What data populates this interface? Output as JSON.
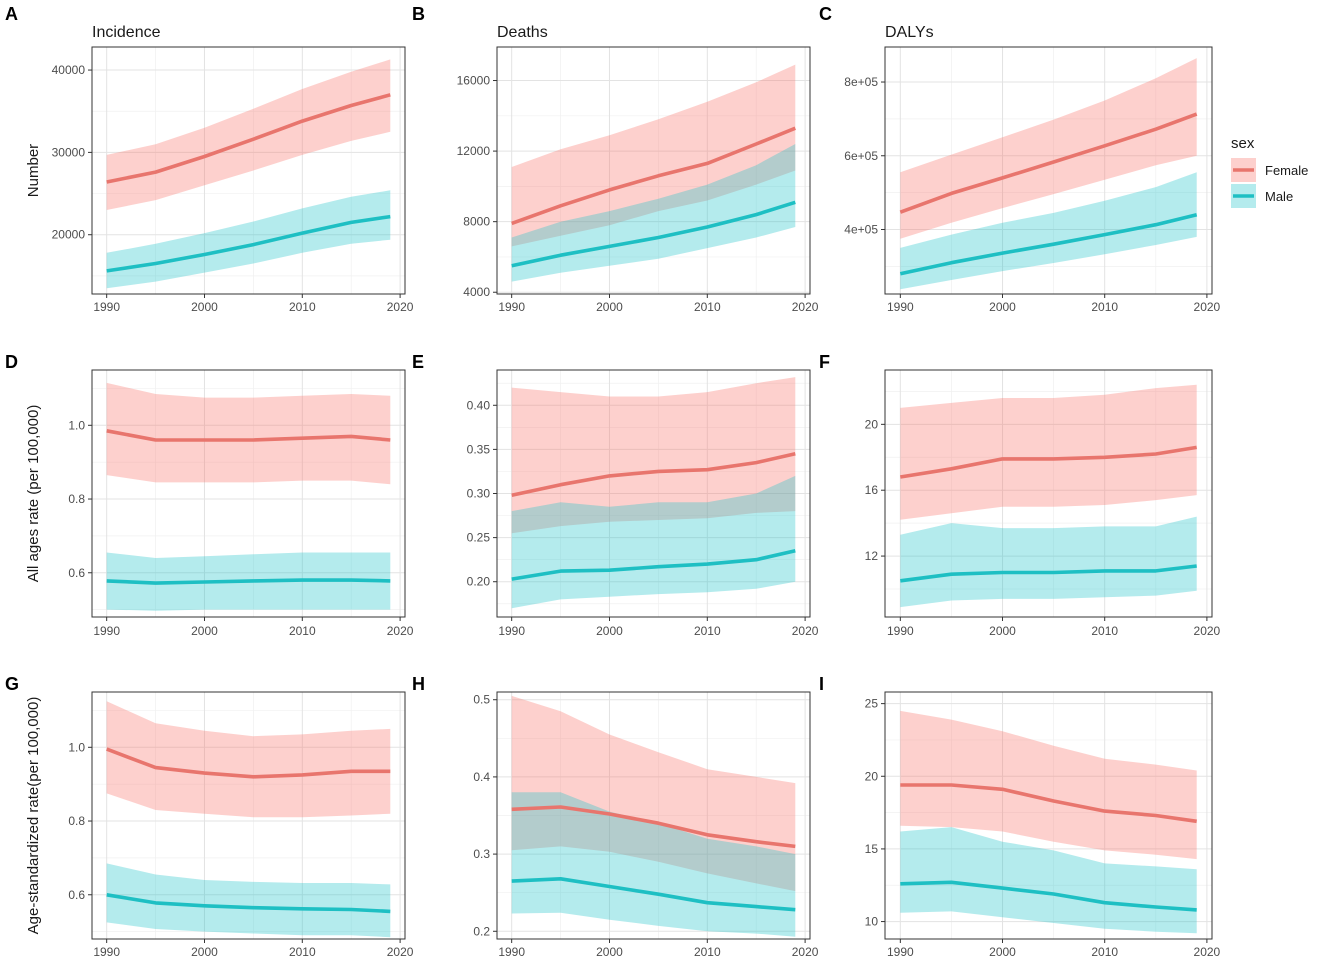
{
  "colors": {
    "Female": "#E8756D",
    "Male": "#1EBFC3",
    "female_band": "#F8766D",
    "male_band": "#22C5CA"
  },
  "legend": {
    "title": "sex",
    "items": [
      {
        "label": "Female",
        "color": "#E8756D"
      },
      {
        "label": "Male",
        "color": "#1EBFC3"
      }
    ]
  },
  "row_labels": [
    "Number",
    "All ages rate (per 100,000)",
    "Age-standardized rate(per 100,000)"
  ],
  "chart_data": [
    {
      "id": "A",
      "type": "line",
      "title": "Incidence",
      "ylabel": "Number",
      "xlim": [
        1988.5,
        2020.5
      ],
      "xticks": [
        1990,
        2000,
        2010,
        2020
      ],
      "xtick_labels": [
        "1990",
        "2000",
        "2010",
        "2020"
      ],
      "ylim": [
        12800,
        42800
      ],
      "yticks": [
        20000,
        30000,
        40000
      ],
      "ytick_labels": [
        "20000",
        "30000",
        "40000"
      ],
      "x": [
        1990,
        1995,
        2000,
        2005,
        2010,
        2015,
        2019
      ],
      "series": [
        {
          "name": "Female",
          "values": [
            26400,
            27600,
            29500,
            31600,
            33800,
            35700,
            37000
          ],
          "lower": [
            23000,
            24200,
            26000,
            27800,
            29700,
            31400,
            32500
          ],
          "upper": [
            29700,
            31000,
            33000,
            35300,
            37700,
            39800,
            41300
          ]
        },
        {
          "name": "Male",
          "values": [
            15600,
            16500,
            17600,
            18800,
            20200,
            21500,
            22200
          ],
          "lower": [
            13500,
            14300,
            15400,
            16500,
            17800,
            18900,
            19400
          ],
          "upper": [
            17800,
            18900,
            20200,
            21600,
            23200,
            24600,
            25400
          ]
        }
      ]
    },
    {
      "id": "B",
      "type": "line",
      "title": "Deaths",
      "ylabel": "",
      "xlim": [
        1988.5,
        2020.5
      ],
      "xticks": [
        1990,
        2000,
        2010,
        2020
      ],
      "xtick_labels": [
        "1990",
        "2000",
        "2010",
        "2020"
      ],
      "ylim": [
        3900,
        17900
      ],
      "yticks": [
        4000,
        8000,
        12000,
        16000
      ],
      "ytick_labels": [
        "4000",
        "8000",
        "12000",
        "16000"
      ],
      "x": [
        1990,
        1995,
        2000,
        2005,
        2010,
        2015,
        2019
      ],
      "series": [
        {
          "name": "Female",
          "values": [
            7900,
            8900,
            9800,
            10600,
            11300,
            12400,
            13300
          ],
          "lower": [
            6600,
            7200,
            7800,
            8600,
            9200,
            10100,
            10900
          ],
          "upper": [
            11100,
            12100,
            12900,
            13800,
            14800,
            15900,
            16900
          ]
        },
        {
          "name": "Male",
          "values": [
            5500,
            6100,
            6600,
            7100,
            7700,
            8400,
            9100
          ],
          "lower": [
            4600,
            5100,
            5500,
            5900,
            6500,
            7100,
            7700
          ],
          "upper": [
            7100,
            8000,
            8600,
            9300,
            10100,
            11200,
            12400
          ]
        }
      ]
    },
    {
      "id": "C",
      "type": "line",
      "title": "DALYs",
      "ylabel": "",
      "xlim": [
        1988.5,
        2020.5
      ],
      "xticks": [
        1990,
        2000,
        2010,
        2020
      ],
      "xtick_labels": [
        "1990",
        "2000",
        "2010",
        "2020"
      ],
      "ylim": [
        225000,
        895000
      ],
      "yticks": [
        400000,
        600000,
        800000
      ],
      "ytick_labels": [
        "4e+05",
        "6e+05",
        "8e+05"
      ],
      "x": [
        1990,
        1995,
        2000,
        2005,
        2010,
        2015,
        2019
      ],
      "series": [
        {
          "name": "Female",
          "values": [
            447000,
            498000,
            540000,
            583000,
            627000,
            672000,
            713000
          ],
          "lower": [
            375000,
            418000,
            458000,
            496000,
            535000,
            574000,
            600000
          ],
          "upper": [
            555000,
            603000,
            650000,
            698000,
            750000,
            810000,
            865000
          ]
        },
        {
          "name": "Male",
          "values": [
            280000,
            310000,
            336000,
            360000,
            386000,
            413000,
            440000
          ],
          "lower": [
            238000,
            263000,
            287000,
            309000,
            333000,
            358000,
            380000
          ],
          "upper": [
            350000,
            386000,
            418000,
            445000,
            478000,
            515000,
            555000
          ]
        }
      ]
    },
    {
      "id": "D",
      "type": "line",
      "title": "",
      "ylabel": "All ages rate (per 100,000)",
      "xlim": [
        1988.5,
        2020.5
      ],
      "xticks": [
        1990,
        2000,
        2010,
        2020
      ],
      "xtick_labels": [
        "1990",
        "2000",
        "2010",
        "2020"
      ],
      "ylim": [
        0.48,
        1.15
      ],
      "yticks": [
        0.6,
        0.8,
        1.0
      ],
      "ytick_labels": [
        "0.6",
        "0.8",
        "1.0"
      ],
      "x": [
        1990,
        1995,
        2000,
        2005,
        2010,
        2015,
        2019
      ],
      "series": [
        {
          "name": "Female",
          "values": [
            0.985,
            0.96,
            0.96,
            0.96,
            0.965,
            0.97,
            0.96
          ],
          "lower": [
            0.865,
            0.845,
            0.845,
            0.845,
            0.85,
            0.85,
            0.84
          ],
          "upper": [
            1.115,
            1.085,
            1.075,
            1.075,
            1.08,
            1.085,
            1.08
          ]
        },
        {
          "name": "Male",
          "values": [
            0.578,
            0.572,
            0.575,
            0.578,
            0.58,
            0.58,
            0.578
          ],
          "lower": [
            0.5,
            0.497,
            0.5,
            0.5,
            0.5,
            0.5,
            0.5
          ],
          "upper": [
            0.655,
            0.64,
            0.645,
            0.65,
            0.655,
            0.655,
            0.655
          ]
        }
      ]
    },
    {
      "id": "E",
      "type": "line",
      "title": "",
      "ylabel": "",
      "xlim": [
        1988.5,
        2020.5
      ],
      "xticks": [
        1990,
        2000,
        2010,
        2020
      ],
      "xtick_labels": [
        "1990",
        "2000",
        "2010",
        "2020"
      ],
      "ylim": [
        0.16,
        0.44
      ],
      "yticks": [
        0.2,
        0.25,
        0.3,
        0.35,
        0.4
      ],
      "ytick_labels": [
        "0.20",
        "0.25",
        "0.30",
        "0.35",
        "0.40"
      ],
      "x": [
        1990,
        1995,
        2000,
        2005,
        2010,
        2015,
        2019
      ],
      "series": [
        {
          "name": "Female",
          "values": [
            0.298,
            0.31,
            0.32,
            0.325,
            0.327,
            0.335,
            0.345
          ],
          "lower": [
            0.255,
            0.263,
            0.268,
            0.27,
            0.272,
            0.278,
            0.28
          ],
          "upper": [
            0.42,
            0.415,
            0.41,
            0.41,
            0.415,
            0.425,
            0.432
          ]
        },
        {
          "name": "Male",
          "values": [
            0.203,
            0.212,
            0.213,
            0.217,
            0.22,
            0.225,
            0.235
          ],
          "lower": [
            0.17,
            0.18,
            0.183,
            0.186,
            0.188,
            0.192,
            0.2
          ],
          "upper": [
            0.28,
            0.29,
            0.285,
            0.29,
            0.29,
            0.3,
            0.32
          ]
        }
      ]
    },
    {
      "id": "F",
      "type": "line",
      "title": "",
      "ylabel": "",
      "xlim": [
        1988.5,
        2020.5
      ],
      "xticks": [
        1990,
        2000,
        2010,
        2020
      ],
      "xtick_labels": [
        "1990",
        "2000",
        "2010",
        "2020"
      ],
      "ylim": [
        8.3,
        23.3
      ],
      "yticks": [
        12,
        16,
        20
      ],
      "ytick_labels": [
        "12",
        "16",
        "20"
      ],
      "x": [
        1990,
        1995,
        2000,
        2005,
        2010,
        2015,
        2019
      ],
      "series": [
        {
          "name": "Female",
          "values": [
            16.8,
            17.3,
            17.9,
            17.9,
            18.0,
            18.2,
            18.6
          ],
          "lower": [
            14.2,
            14.6,
            15.0,
            15.0,
            15.1,
            15.4,
            15.7
          ],
          "upper": [
            21.0,
            21.3,
            21.6,
            21.6,
            21.8,
            22.2,
            22.4
          ]
        },
        {
          "name": "Male",
          "values": [
            10.5,
            10.9,
            11.0,
            11.0,
            11.1,
            11.1,
            11.4
          ],
          "lower": [
            8.9,
            9.3,
            9.4,
            9.4,
            9.5,
            9.6,
            9.9
          ],
          "upper": [
            13.3,
            14.0,
            13.7,
            13.7,
            13.8,
            13.8,
            14.4
          ]
        }
      ]
    },
    {
      "id": "G",
      "type": "line",
      "title": "",
      "ylabel": "Age-standardized rate(per 100,000)",
      "xlim": [
        1988.5,
        2020.5
      ],
      "xticks": [
        1990,
        2000,
        2010,
        2020
      ],
      "xtick_labels": [
        "1990",
        "2000",
        "2010",
        "2020"
      ],
      "ylim": [
        0.48,
        1.15
      ],
      "yticks": [
        0.6,
        0.8,
        1.0
      ],
      "ytick_labels": [
        "0.6",
        "0.8",
        "1.0"
      ],
      "x": [
        1990,
        1995,
        2000,
        2005,
        2010,
        2015,
        2019
      ],
      "series": [
        {
          "name": "Female",
          "values": [
            0.995,
            0.945,
            0.93,
            0.92,
            0.925,
            0.935,
            0.935
          ],
          "lower": [
            0.875,
            0.83,
            0.82,
            0.81,
            0.81,
            0.815,
            0.82
          ],
          "upper": [
            1.125,
            1.065,
            1.045,
            1.03,
            1.035,
            1.045,
            1.05
          ]
        },
        {
          "name": "Male",
          "values": [
            0.6,
            0.578,
            0.57,
            0.565,
            0.562,
            0.56,
            0.555
          ],
          "lower": [
            0.525,
            0.507,
            0.5,
            0.495,
            0.49,
            0.49,
            0.485
          ],
          "upper": [
            0.685,
            0.655,
            0.64,
            0.635,
            0.632,
            0.632,
            0.628
          ]
        }
      ]
    },
    {
      "id": "H",
      "type": "line",
      "title": "",
      "ylabel": "",
      "xlim": [
        1988.5,
        2020.5
      ],
      "xticks": [
        1990,
        2000,
        2010,
        2020
      ],
      "xtick_labels": [
        "1990",
        "2000",
        "2010",
        "2020"
      ],
      "ylim": [
        0.19,
        0.51
      ],
      "yticks": [
        0.2,
        0.3,
        0.4,
        0.5
      ],
      "ytick_labels": [
        "0.2",
        "0.3",
        "0.4",
        "0.5"
      ],
      "x": [
        1990,
        1995,
        2000,
        2005,
        2010,
        2015,
        2019
      ],
      "series": [
        {
          "name": "Female",
          "values": [
            0.358,
            0.361,
            0.352,
            0.34,
            0.325,
            0.316,
            0.31
          ],
          "lower": [
            0.305,
            0.31,
            0.303,
            0.29,
            0.275,
            0.262,
            0.252
          ],
          "upper": [
            0.505,
            0.485,
            0.455,
            0.432,
            0.41,
            0.4,
            0.392
          ]
        },
        {
          "name": "Male",
          "values": [
            0.265,
            0.268,
            0.258,
            0.248,
            0.237,
            0.232,
            0.228
          ],
          "lower": [
            0.223,
            0.224,
            0.215,
            0.207,
            0.2,
            0.197,
            0.193
          ],
          "upper": [
            0.38,
            0.38,
            0.355,
            0.34,
            0.32,
            0.31,
            0.3
          ]
        }
      ]
    },
    {
      "id": "I",
      "type": "line",
      "title": "",
      "ylabel": "",
      "xlim": [
        1988.5,
        2020.5
      ],
      "xticks": [
        1990,
        2000,
        2010,
        2020
      ],
      "xtick_labels": [
        "1990",
        "2000",
        "2010",
        "2020"
      ],
      "ylim": [
        8.8,
        25.8
      ],
      "yticks": [
        10,
        15,
        20,
        25
      ],
      "ytick_labels": [
        "10",
        "15",
        "20",
        "25"
      ],
      "x": [
        1990,
        1995,
        2000,
        2005,
        2010,
        2015,
        2019
      ],
      "series": [
        {
          "name": "Female",
          "values": [
            19.4,
            19.4,
            19.1,
            18.3,
            17.6,
            17.3,
            16.9
          ],
          "lower": [
            16.6,
            16.5,
            16.2,
            15.5,
            14.9,
            14.6,
            14.3
          ],
          "upper": [
            24.5,
            23.9,
            23.1,
            22.1,
            21.2,
            20.8,
            20.4
          ]
        },
        {
          "name": "Male",
          "values": [
            12.6,
            12.7,
            12.3,
            11.9,
            11.3,
            11.0,
            10.8
          ],
          "lower": [
            10.6,
            10.7,
            10.3,
            9.9,
            9.5,
            9.3,
            9.2
          ],
          "upper": [
            16.2,
            16.5,
            15.5,
            14.9,
            14.0,
            13.8,
            13.6
          ]
        }
      ]
    }
  ]
}
